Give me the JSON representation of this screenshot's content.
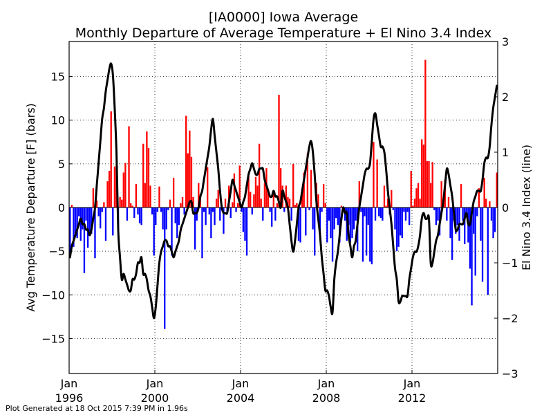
{
  "chart_data": {
    "type": "bar",
    "title": "[IA0000] Iowa Average",
    "subtitle": "Monthly Departure of Average Temperature + El Nino 3.4 Index",
    "ylabel": "Avg Temperature Departure [F] (bars)",
    "y2label": "El Nino 3.4 Index (line)",
    "footer": "Plot Generated at 18 Oct 2015 7:39 PM in 1.96s",
    "xlim": [
      "1996-01",
      "2015-12"
    ],
    "ylim": [
      -19,
      19
    ],
    "y2lim": [
      -3,
      3
    ],
    "grid": true,
    "x_ticks": [
      {
        "month": "Jan",
        "year": "1996",
        "date": "1996-01"
      },
      {
        "month": "Jan",
        "year": "2000",
        "date": "2000-01"
      },
      {
        "month": "Jan",
        "year": "2004",
        "date": "2004-01"
      },
      {
        "month": "Jan",
        "year": "2008",
        "date": "2008-01"
      },
      {
        "month": "Jan",
        "year": "2012",
        "date": "2012-01"
      }
    ],
    "y_ticks": [
      "15",
      "10",
      "5",
      "0",
      "−5",
      "−10",
      "−15"
    ],
    "y2_ticks": [
      "3",
      "2",
      "1",
      "0",
      "−1",
      "−2",
      "−3"
    ],
    "colors": {
      "positive": "#ff0000",
      "negative": "#0000ff",
      "line": "#000000"
    },
    "series": [
      {
        "name": "Avg Temperature Departure [F]",
        "kind": "bar",
        "start": "1996-01",
        "values": [
          -5.2,
          0.3,
          -4.5,
          -3.0,
          -3.5,
          -1.0,
          -3.8,
          -2.5,
          -7.5,
          -1.5,
          -4.6,
          -3.2,
          -3.0,
          2.2,
          -5.8,
          0.8,
          -1.0,
          -2.4,
          -0.5,
          0.6,
          -3.8,
          3.0,
          4.2,
          11.0,
          -3.2,
          4.7,
          4.5,
          -2.5,
          1.2,
          0.9,
          4.0,
          5.1,
          -1.5,
          9.3,
          0.5,
          0.2,
          -1.2,
          2.7,
          -0.8,
          -1.8,
          -2.0,
          7.3,
          2.8,
          8.7,
          6.8,
          2.5,
          -0.8,
          -5.5,
          -2.0,
          -0.5,
          2.4,
          -0.5,
          -2.5,
          -13.9,
          -2.5,
          -0.3,
          0.9,
          -5.5,
          3.4,
          -1.8,
          -3.5,
          -2.0,
          0.5,
          1.2,
          -0.8,
          10.5,
          6.2,
          8.8,
          5.8,
          1.2,
          -4.8,
          -1.5,
          2.8,
          1.5,
          -5.8,
          -0.5,
          -2.0,
          4.6,
          -0.8,
          -3.5,
          -0.5,
          -2.0,
          1.0,
          2.0,
          -1.5,
          -0.3,
          -3.0,
          1.0,
          -0.5,
          2.5,
          -1.2,
          0.6,
          3.9,
          -0.5,
          0.5,
          4.8,
          -0.5,
          -2.8,
          -3.8,
          -5.5,
          3.9,
          1.8,
          -0.8,
          1.5,
          3.5,
          2.5,
          7.3,
          1.0,
          -1.5,
          2.8,
          4.5,
          1.8,
          -0.5,
          -2.2,
          2.0,
          -1.5,
          0.5,
          12.9,
          4.5,
          2.5,
          -0.5,
          2.5,
          1.2,
          1.0,
          -1.5,
          5.0,
          0.3,
          0.5,
          -3.8,
          -4.0,
          2.2,
          4.0,
          -3.2,
          6.2,
          -0.3,
          4.3,
          -2.5,
          -5.5,
          2.8,
          1.5,
          -3.0,
          -0.5,
          2.7,
          0.5,
          -4.0,
          -1.5,
          -3.5,
          -6.2,
          -2.5,
          -1.2,
          -2.0,
          -4.0,
          0.2,
          -0.5,
          -1.5,
          -3.8,
          -2.0,
          -4.0,
          -3.5,
          -2.5,
          -1.5,
          -5.0,
          3.0,
          -0.5,
          -6.2,
          -1.0,
          -5.5,
          -2.0,
          -6.2,
          -6.5,
          7.5,
          -1.5,
          5.5,
          -1.0,
          -1.2,
          -1.5,
          2.5,
          0.2,
          1.0,
          -0.8,
          2.0,
          -0.3,
          -2.5,
          -5.0,
          -4.5,
          -3.2,
          -3.5,
          -0.5,
          -1.5,
          -0.5,
          -2.0,
          4.2,
          0.2,
          1.0,
          2.2,
          2.8,
          1.0,
          7.8,
          7.2,
          16.9,
          5.3,
          5.3,
          2.8,
          5.2,
          -0.3,
          -2.0,
          -1.5,
          -3.2,
          3.0,
          0.5,
          3.2,
          -1.5,
          1.2,
          -3.5,
          -6.0,
          -1.5,
          -3.0,
          -2.0,
          -3.8,
          2.7,
          -1.5,
          -4.2,
          -0.5,
          -4.0,
          -7.0,
          -11.2,
          -3.0,
          -7.8,
          -1.0,
          2.2,
          -3.8,
          -8.5,
          3.4,
          1.0,
          -10.0,
          0.7,
          -1.5,
          -3.5,
          -2.8,
          4.0
        ]
      },
      {
        "name": "El Nino 3.4 Index",
        "kind": "line",
        "start": "1996-01",
        "values": [
          -0.9,
          -0.7,
          -0.6,
          -0.5,
          -0.4,
          -0.3,
          -0.2,
          -0.3,
          -0.3,
          -0.4,
          -0.4,
          -0.5,
          -0.4,
          -0.2,
          0.0,
          0.4,
          0.8,
          1.2,
          1.6,
          1.8,
          2.1,
          2.3,
          2.5,
          2.6,
          2.4,
          1.8,
          1.0,
          -0.4,
          -0.9,
          -1.3,
          -1.2,
          -1.3,
          -1.4,
          -1.5,
          -1.5,
          -1.3,
          -1.3,
          -1.2,
          -1.0,
          -1.0,
          -0.9,
          -1.2,
          -1.2,
          -1.3,
          -1.5,
          -1.6,
          -1.8,
          -2.0,
          -1.8,
          -1.4,
          -1.0,
          -0.8,
          -0.7,
          -0.6,
          -0.6,
          -0.7,
          -0.7,
          -0.8,
          -0.9,
          -0.8,
          -0.7,
          -0.6,
          -0.4,
          -0.3,
          -0.2,
          -0.1,
          0.0,
          0.1,
          0.1,
          -0.1,
          -0.1,
          -0.1,
          0.0,
          0.2,
          0.3,
          0.5,
          0.7,
          0.9,
          1.1,
          1.4,
          1.6,
          1.3,
          1.0,
          0.7,
          0.3,
          0.0,
          -0.1,
          -0.1,
          -0.1,
          0.1,
          0.3,
          0.5,
          0.4,
          0.3,
          0.2,
          0.1,
          0.0,
          0.1,
          0.2,
          0.4,
          0.6,
          0.7,
          0.8,
          0.7,
          0.6,
          0.6,
          0.7,
          0.7,
          0.7,
          0.5,
          0.4,
          0.3,
          0.2,
          0.2,
          0.3,
          0.2,
          0.2,
          0.1,
          0.0,
          0.3,
          0.2,
          0.1,
          0.0,
          -0.3,
          -0.6,
          -0.8,
          -0.6,
          -0.3,
          0.0,
          0.1,
          0.3,
          0.5,
          0.7,
          0.9,
          1.1,
          1.2,
          1.0,
          0.6,
          0.1,
          -0.2,
          -0.5,
          -0.9,
          -1.2,
          -1.5,
          -1.5,
          -1.6,
          -1.8,
          -1.9,
          -1.3,
          -1.0,
          -0.8,
          -0.5,
          -0.2,
          0.0,
          -0.1,
          -0.1,
          -0.5,
          -0.7,
          -0.9,
          -0.7,
          -0.6,
          -0.3,
          0.0,
          0.2,
          0.4,
          0.6,
          0.7,
          0.7,
          0.8,
          1.2,
          1.6,
          1.7,
          1.5,
          1.3,
          1.1,
          1.1,
          1.0,
          0.7,
          0.3,
          0.0,
          -0.3,
          -0.7,
          -1.1,
          -1.3,
          -1.7,
          -1.7,
          -1.6,
          -1.6,
          -1.6,
          -1.6,
          -1.3,
          -1.1,
          -0.9,
          -0.8,
          -0.8,
          -0.7,
          -0.5,
          -0.2,
          -0.1,
          -0.2,
          -0.2,
          -0.2,
          -1.0,
          -1.0,
          -0.8,
          -0.6,
          -0.5,
          -0.3,
          -0.1,
          0.1,
          0.4,
          0.7,
          0.6,
          0.4,
          0.2,
          -0.1,
          -0.4,
          -0.4,
          -0.3,
          -0.3,
          -0.3,
          -0.2,
          -0.1,
          -0.3,
          -0.3,
          -0.1,
          0.1,
          0.2,
          0.3,
          0.3,
          0.3,
          0.5,
          0.8,
          0.9,
          0.9,
          1.1,
          1.5,
          1.8,
          2.0,
          2.2
        ]
      }
    ]
  }
}
